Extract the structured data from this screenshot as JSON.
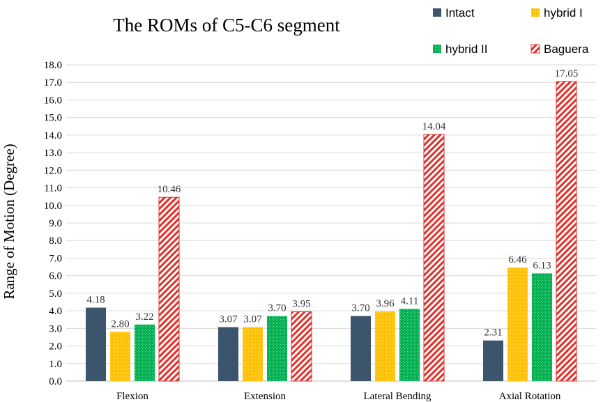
{
  "chart_data": {
    "type": "bar",
    "title": "The ROMs of C5-C6 segment",
    "xlabel": "",
    "ylabel": "Range of Motion  (Degree)",
    "ylim": [
      0,
      18
    ],
    "ytick_step": 1,
    "yticks": [
      "0.0",
      "1.0",
      "2.0",
      "3.0",
      "4.0",
      "5.0",
      "6.0",
      "7.0",
      "8.0",
      "9.0",
      "10.0",
      "11.0",
      "12.0",
      "13.0",
      "14.0",
      "15.0",
      "16.0",
      "17.0",
      "18.0"
    ],
    "categories": [
      "Flexion",
      "Extension",
      "Lateral Bending",
      "Axial Rotation"
    ],
    "legend_position": "top-right",
    "series": [
      {
        "name": "Intact",
        "color": "#3c546c",
        "pattern": "solid",
        "values": [
          4.18,
          3.07,
          3.7,
          2.31
        ],
        "labels": [
          "4.18",
          "3.07",
          "3.70",
          "2.31"
        ]
      },
      {
        "name": "hybrid I",
        "color": "#ffc000",
        "pattern": "dots",
        "values": [
          2.8,
          3.07,
          3.96,
          6.46
        ],
        "labels": [
          "2.80",
          "3.07",
          "3.96",
          "6.46"
        ]
      },
      {
        "name": "hybrid II",
        "color": "#00b050",
        "pattern": "dots",
        "values": [
          3.22,
          3.7,
          4.11,
          6.13
        ],
        "labels": [
          "3.22",
          "3.70",
          "4.11",
          "6.13"
        ]
      },
      {
        "name": "Baguera",
        "color": "#e0302a",
        "pattern": "diagonal",
        "values": [
          10.46,
          3.95,
          14.04,
          17.05
        ],
        "labels": [
          "10.46",
          "3.95",
          "14.04",
          "17.05"
        ]
      }
    ]
  }
}
